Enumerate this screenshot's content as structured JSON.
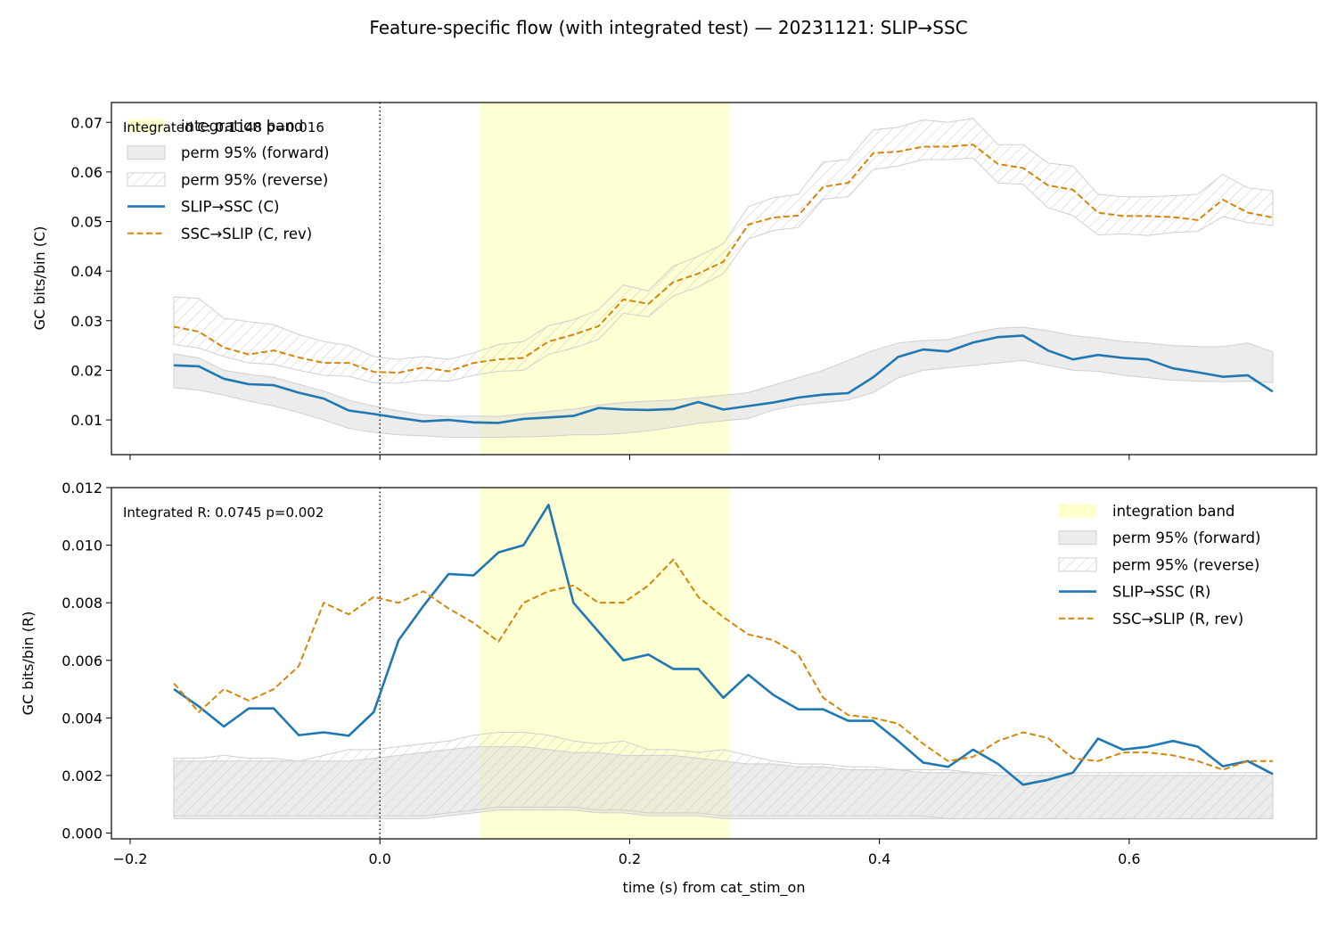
{
  "figure": {
    "title": "Feature-specific flow (with integrated test) — 20231121: SLIP→SSC"
  },
  "colors": {
    "forward": "#1f77b4",
    "reverse": "#d4860b",
    "band": "#ffffcc",
    "perm_fill": "#d9d9d9",
    "perm_edge": "#cfcfcf",
    "hatch": "#c8c8c8"
  },
  "chart_data": [
    {
      "type": "line",
      "id": "top",
      "xlabel": "",
      "ylabel": "GC bits/bin (C)",
      "xlim": [
        -0.215,
        0.75
      ],
      "ylim": [
        0.003,
        0.074
      ],
      "xticks": [
        -0.2,
        0.0,
        0.2,
        0.4,
        0.6
      ],
      "xtick_labels": [],
      "yticks": [
        0.01,
        0.02,
        0.03,
        0.04,
        0.05,
        0.06,
        0.07
      ],
      "ytick_labels": [
        "0.01",
        "0.02",
        "0.03",
        "0.04",
        "0.05",
        "0.06",
        "0.07"
      ],
      "integration_band": [
        0.08,
        0.28
      ],
      "zero_line": 0.0,
      "annotation": "Integrated C: 0.1148  p=0.016",
      "legend_position": "upper-left",
      "legend": [
        {
          "label": "integration band",
          "kind": "band"
        },
        {
          "label": "perm 95% (forward)",
          "kind": "perm"
        },
        {
          "label": "perm 95% (reverse)",
          "kind": "hatch"
        },
        {
          "label": "SLIP→SSC (C)",
          "kind": "line"
        },
        {
          "label": "SSC→SLIP (C, rev)",
          "kind": "dash"
        }
      ],
      "x": [
        -0.165,
        -0.145,
        -0.125,
        -0.105,
        -0.085,
        -0.065,
        -0.045,
        -0.025,
        -0.005,
        0.015,
        0.035,
        0.055,
        0.075,
        0.095,
        0.115,
        0.135,
        0.155,
        0.175,
        0.195,
        0.215,
        0.235,
        0.255,
        0.275,
        0.295,
        0.315,
        0.335,
        0.355,
        0.375,
        0.395,
        0.415,
        0.435,
        0.455,
        0.475,
        0.495,
        0.515,
        0.535,
        0.555,
        0.575,
        0.595,
        0.615,
        0.635,
        0.655,
        0.675,
        0.695,
        0.715
      ],
      "series": [
        {
          "name": "SLIP→SSC (C)",
          "style": "solid",
          "values": [
            0.021,
            0.0208,
            0.0183,
            0.0172,
            0.017,
            0.0155,
            0.0143,
            0.0119,
            0.0112,
            0.0104,
            0.0097,
            0.01,
            0.0095,
            0.0094,
            0.0102,
            0.0105,
            0.0108,
            0.0124,
            0.0121,
            0.012,
            0.0122,
            0.0136,
            0.0121,
            0.0128,
            0.0135,
            0.0145,
            0.0151,
            0.0154,
            0.0186,
            0.0227,
            0.0242,
            0.0238,
            0.0256,
            0.0267,
            0.027,
            0.024,
            0.0222,
            0.0231,
            0.0225,
            0.0222,
            0.0204,
            0.0196,
            0.0187,
            0.019,
            0.0157
          ]
        },
        {
          "name": "SSC→SLIP (C, rev)",
          "style": "dashed",
          "values": [
            0.0288,
            0.0278,
            0.0246,
            0.0232,
            0.024,
            0.0226,
            0.0215,
            0.0215,
            0.0197,
            0.0195,
            0.0206,
            0.0198,
            0.0215,
            0.0222,
            0.0225,
            0.0258,
            0.0272,
            0.0289,
            0.0343,
            0.0334,
            0.0378,
            0.0395,
            0.0419,
            0.0494,
            0.0508,
            0.0512,
            0.057,
            0.0578,
            0.0638,
            0.0641,
            0.0651,
            0.0651,
            0.0655,
            0.0616,
            0.0608,
            0.0573,
            0.0564,
            0.0518,
            0.0511,
            0.0511,
            0.0509,
            0.0503,
            0.0544,
            0.0518,
            0.0508
          ]
        }
      ],
      "perm_forward": {
        "lower": [
          0.0165,
          0.016,
          0.015,
          0.0138,
          0.0128,
          0.0115,
          0.01,
          0.0083,
          0.0075,
          0.007,
          0.0068,
          0.0065,
          0.0065,
          0.0065,
          0.0066,
          0.0067,
          0.007,
          0.007,
          0.0073,
          0.0078,
          0.0085,
          0.0093,
          0.0098,
          0.0103,
          0.012,
          0.013,
          0.0135,
          0.014,
          0.0155,
          0.0185,
          0.02,
          0.0205,
          0.021,
          0.0215,
          0.022,
          0.021,
          0.02,
          0.0198,
          0.019,
          0.0185,
          0.018,
          0.0178,
          0.0177,
          0.0178,
          0.0175
        ],
        "upper": [
          0.0233,
          0.0225,
          0.02,
          0.0192,
          0.0186,
          0.0172,
          0.0158,
          0.014,
          0.0128,
          0.0118,
          0.011,
          0.0107,
          0.0108,
          0.0107,
          0.0112,
          0.0117,
          0.0122,
          0.013,
          0.0135,
          0.0138,
          0.014,
          0.0145,
          0.015,
          0.0155,
          0.017,
          0.0185,
          0.02,
          0.022,
          0.024,
          0.0255,
          0.026,
          0.0262,
          0.0275,
          0.0285,
          0.0287,
          0.028,
          0.027,
          0.0265,
          0.0258,
          0.0255,
          0.025,
          0.0248,
          0.0248,
          0.0255,
          0.0237
        ]
      },
      "perm_reverse": {
        "lower": [
          0.0252,
          0.0245,
          0.0228,
          0.0215,
          0.0212,
          0.02,
          0.019,
          0.0188,
          0.0175,
          0.0174,
          0.018,
          0.0178,
          0.019,
          0.0198,
          0.02,
          0.0232,
          0.0245,
          0.0262,
          0.0315,
          0.0308,
          0.035,
          0.0368,
          0.0395,
          0.0465,
          0.0482,
          0.0488,
          0.0545,
          0.055,
          0.0605,
          0.0612,
          0.0625,
          0.0625,
          0.0628,
          0.0578,
          0.0575,
          0.0528,
          0.0512,
          0.0473,
          0.0475,
          0.0472,
          0.0478,
          0.048,
          0.051,
          0.0498,
          0.0492
        ],
        "upper": [
          0.0348,
          0.0345,
          0.0305,
          0.0298,
          0.0292,
          0.0272,
          0.0258,
          0.025,
          0.0228,
          0.0222,
          0.0228,
          0.0222,
          0.0235,
          0.0252,
          0.0258,
          0.029,
          0.0302,
          0.0322,
          0.0372,
          0.036,
          0.041,
          0.043,
          0.0455,
          0.053,
          0.0548,
          0.0555,
          0.062,
          0.0625,
          0.0685,
          0.069,
          0.0705,
          0.07,
          0.0708,
          0.0655,
          0.0655,
          0.0618,
          0.0612,
          0.0555,
          0.055,
          0.055,
          0.0552,
          0.0555,
          0.0595,
          0.0568,
          0.0562
        ]
      }
    },
    {
      "type": "line",
      "id": "bottom",
      "xlabel": "time (s) from cat_stim_on",
      "ylabel": "GC bits/bin (R)",
      "xlim": [
        -0.215,
        0.75
      ],
      "ylim": [
        -0.0002,
        0.012
      ],
      "xticks": [
        -0.2,
        0.0,
        0.2,
        0.4,
        0.6
      ],
      "xtick_labels": [
        "−0.2",
        "0.0",
        "0.2",
        "0.4",
        "0.6"
      ],
      "yticks": [
        0.0,
        0.002,
        0.004,
        0.006,
        0.008,
        0.01,
        0.012
      ],
      "ytick_labels": [
        "0.000",
        "0.002",
        "0.004",
        "0.006",
        "0.008",
        "0.010",
        "0.012"
      ],
      "integration_band": [
        0.08,
        0.28
      ],
      "zero_line": 0.0,
      "annotation": "Integrated R: 0.0745  p=0.002",
      "legend_position": "upper-right",
      "legend": [
        {
          "label": "integration band",
          "kind": "band"
        },
        {
          "label": "perm 95% (forward)",
          "kind": "perm"
        },
        {
          "label": "perm 95% (reverse)",
          "kind": "hatch"
        },
        {
          "label": "SLIP→SSC (R)",
          "kind": "line"
        },
        {
          "label": "SSC→SLIP (R, rev)",
          "kind": "dash"
        }
      ],
      "x": [
        -0.165,
        -0.145,
        -0.125,
        -0.105,
        -0.085,
        -0.065,
        -0.045,
        -0.025,
        -0.005,
        0.015,
        0.035,
        0.055,
        0.075,
        0.095,
        0.115,
        0.135,
        0.155,
        0.175,
        0.195,
        0.215,
        0.235,
        0.255,
        0.275,
        0.295,
        0.315,
        0.335,
        0.355,
        0.375,
        0.395,
        0.415,
        0.435,
        0.455,
        0.475,
        0.495,
        0.515,
        0.535,
        0.555,
        0.575,
        0.595,
        0.615,
        0.635,
        0.655,
        0.675,
        0.695,
        0.715
      ],
      "series": [
        {
          "name": "SLIP→SSC (R)",
          "style": "solid",
          "values": [
            0.005,
            0.0044,
            0.0037,
            0.00433,
            0.00433,
            0.0034,
            0.0035,
            0.00338,
            0.0042,
            0.0067,
            0.0079,
            0.009,
            0.00895,
            0.00975,
            0.01,
            0.0114,
            0.008,
            0.007,
            0.006,
            0.0062,
            0.0057,
            0.0057,
            0.0047,
            0.0055,
            0.0048,
            0.0043,
            0.0043,
            0.0039,
            0.0039,
            0.0032,
            0.00245,
            0.0023,
            0.0029,
            0.0024,
            0.00168,
            0.00185,
            0.0021,
            0.00328,
            0.0029,
            0.003,
            0.0032,
            0.003,
            0.00232,
            0.0025,
            0.00205
          ]
        },
        {
          "name": "SSC→SLIP (R, rev)",
          "style": "dashed",
          "values": [
            0.0052,
            0.0042,
            0.005,
            0.0046,
            0.005,
            0.0058,
            0.008,
            0.0076,
            0.0082,
            0.008,
            0.0084,
            0.0078,
            0.0073,
            0.00665,
            0.008,
            0.0084,
            0.0086,
            0.008,
            0.008,
            0.0086,
            0.0095,
            0.0082,
            0.0075,
            0.0069,
            0.0067,
            0.0062,
            0.0047,
            0.0041,
            0.004,
            0.0038,
            0.0031,
            0.0025,
            0.00265,
            0.0032,
            0.0035,
            0.0033,
            0.0026,
            0.0025,
            0.0028,
            0.0028,
            0.0027,
            0.0025,
            0.0022,
            0.0025,
            0.0025
          ]
        }
      ],
      "perm_forward": {
        "lower": [
          0.0005,
          0.0005,
          0.0005,
          0.0005,
          0.0005,
          0.0005,
          0.0005,
          0.0005,
          0.0005,
          0.0005,
          0.0005,
          0.0006,
          0.0007,
          0.0008,
          0.0008,
          0.0008,
          0.0008,
          0.0007,
          0.0007,
          0.0006,
          0.0006,
          0.0006,
          0.0005,
          0.0005,
          0.0005,
          0.0005,
          0.0005,
          0.0005,
          0.0005,
          0.0005,
          0.0005,
          0.0005,
          0.0005,
          0.0005,
          0.0005,
          0.0005,
          0.0005,
          0.0005,
          0.0005,
          0.0005,
          0.0005,
          0.0005,
          0.0005,
          0.0005,
          0.0005
        ],
        "upper": [
          0.0025,
          0.0025,
          0.0025,
          0.0025,
          0.0025,
          0.0025,
          0.0025,
          0.0025,
          0.0026,
          0.0027,
          0.0028,
          0.0029,
          0.003,
          0.003,
          0.003,
          0.0029,
          0.0028,
          0.0028,
          0.0027,
          0.0027,
          0.0027,
          0.0026,
          0.0025,
          0.0024,
          0.0024,
          0.0023,
          0.0023,
          0.0022,
          0.0022,
          0.0022,
          0.0021,
          0.0021,
          0.0021,
          0.002,
          0.002,
          0.002,
          0.002,
          0.002,
          0.002,
          0.002,
          0.002,
          0.002,
          0.002,
          0.002,
          0.002
        ]
      },
      "perm_reverse": {
        "lower": [
          0.0006,
          0.0006,
          0.0006,
          0.0006,
          0.0006,
          0.0006,
          0.0006,
          0.0006,
          0.0006,
          0.0006,
          0.0006,
          0.0007,
          0.0008,
          0.0009,
          0.0009,
          0.0009,
          0.0009,
          0.0008,
          0.0008,
          0.0007,
          0.0007,
          0.0007,
          0.0006,
          0.0006,
          0.0006,
          0.0006,
          0.0006,
          0.0006,
          0.0006,
          0.0006,
          0.0006,
          0.0005,
          0.0005,
          0.0005,
          0.0005,
          0.0005,
          0.0005,
          0.0005,
          0.0005,
          0.0005,
          0.0005,
          0.0005,
          0.0005,
          0.0005,
          0.0005
        ],
        "upper": [
          0.0026,
          0.0026,
          0.0027,
          0.0026,
          0.0026,
          0.0025,
          0.0027,
          0.0029,
          0.0029,
          0.003,
          0.0031,
          0.0032,
          0.0034,
          0.0035,
          0.0035,
          0.0034,
          0.0032,
          0.0031,
          0.0032,
          0.0029,
          0.0029,
          0.0028,
          0.0029,
          0.0027,
          0.0025,
          0.0024,
          0.0024,
          0.0023,
          0.0023,
          0.0022,
          0.0022,
          0.0022,
          0.0021,
          0.0021,
          0.0021,
          0.0021,
          0.0021,
          0.0021,
          0.0021,
          0.0021,
          0.0021,
          0.0021,
          0.0021,
          0.0021,
          0.0021
        ]
      }
    }
  ]
}
